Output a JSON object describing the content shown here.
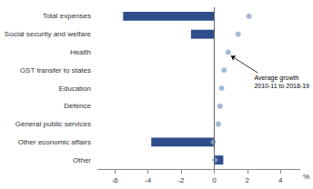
{
  "chart_data": {
    "type": "bar",
    "orientation": "horizontal",
    "categories": [
      "Other",
      "Other economic affairs",
      "General public services",
      "Defence",
      "Education",
      "GST transfer to states",
      "Health",
      "Social security and welfare",
      "Total expenses"
    ],
    "series": [
      {
        "type": "bar",
        "color": "#2E4D8B",
        "values": [
          0.55,
          -3.8,
          0.0,
          0.0,
          0.0,
          0.0,
          0.0,
          -1.4,
          -5.5
        ]
      },
      {
        "type": "scatter",
        "color": "#8FA8CF",
        "values": [
          0.05,
          -0.05,
          0.25,
          0.35,
          0.45,
          0.6,
          0.85,
          1.45,
          2.1
        ]
      }
    ],
    "xlim": [
      -7.0,
      5.2
    ],
    "xticks": [
      -6,
      -4,
      -2,
      0,
      2,
      4
    ],
    "xlabel": "%",
    "annotations": [
      {
        "text": "Average growth\n2010-11 to 2018-19",
        "category": "Health"
      }
    ],
    "grid": false
  }
}
